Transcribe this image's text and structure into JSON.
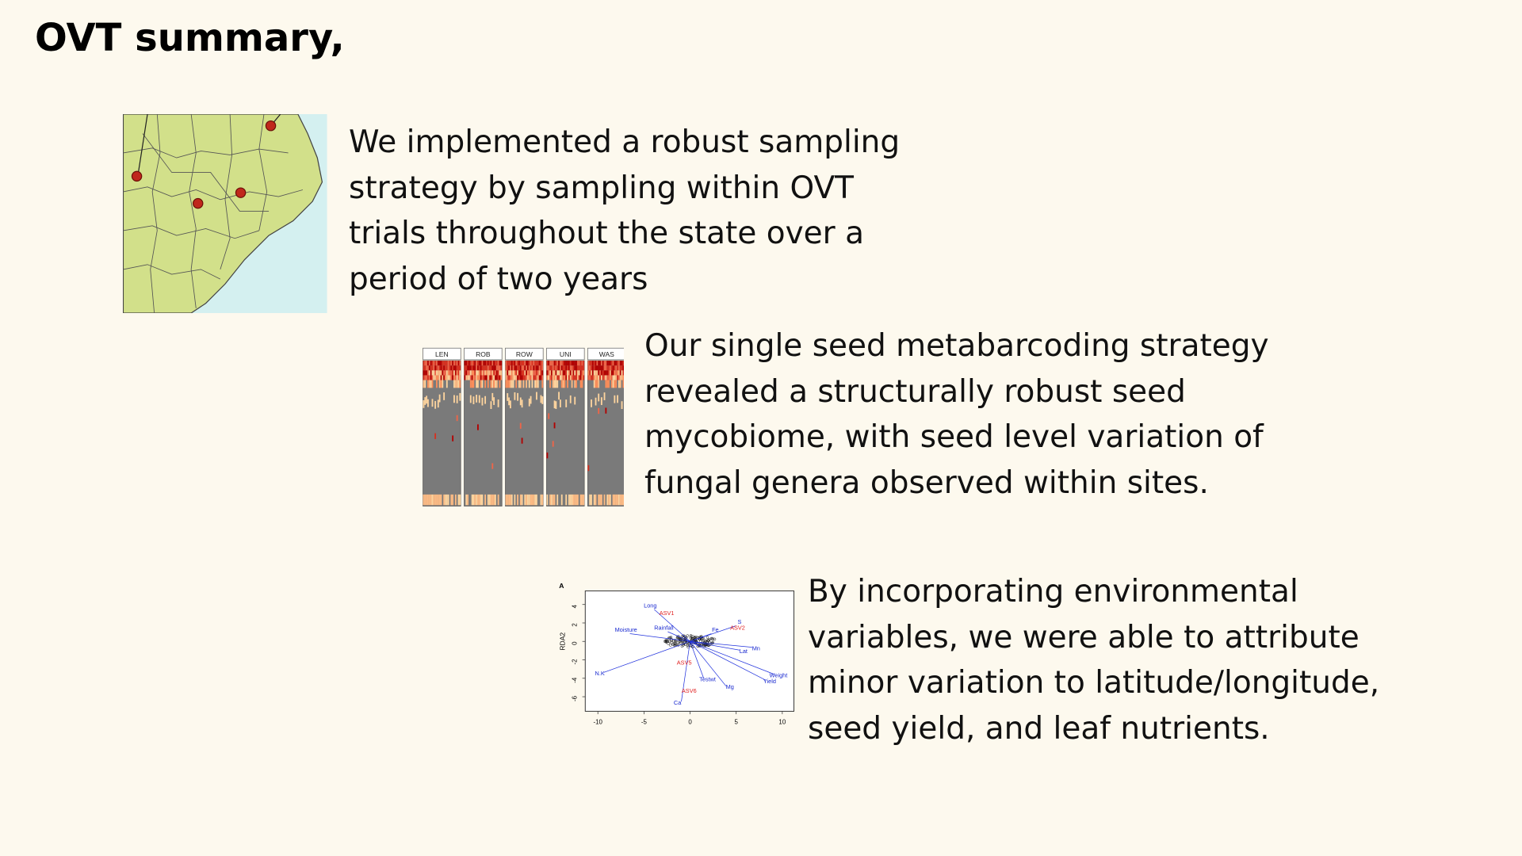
{
  "title": "OVT summary,",
  "sections": [
    {
      "lines": [
        "We implemented a robust sampling",
        "strategy by sampling within OVT",
        "trials throughout the state over a",
        "period of two years"
      ]
    },
    {
      "lines": [
        "Our single seed metabarcoding strategy",
        "revealed a structurally robust seed",
        "mycobiome, with seed level variation of",
        "fungal genera observed within sites."
      ]
    },
    {
      "lines": [
        "By incorporating environmental",
        "variables, we were able to attribute",
        "minor variation to latitude/longitude,",
        "seed yield, and leaf nutrients."
      ]
    }
  ],
  "heatmap": {
    "panels": [
      "LEN",
      "ROB",
      "ROW",
      "UNI",
      "WAS"
    ]
  },
  "rda": {
    "panel_label": "A",
    "y_label": "RDA2",
    "yticks": [
      "4",
      "2",
      "0",
      "-2",
      "-4",
      "-6"
    ],
    "xticks": [
      "-10",
      "-5",
      "0",
      "5",
      "10"
    ],
    "variables": [
      "Long",
      "Rainfall",
      "Moisture",
      "Fe",
      "S",
      "Mn",
      "Lat",
      "N.K",
      "Testwt",
      "Weight",
      "Yield",
      "Mg",
      "Ca"
    ],
    "asvs": [
      "ASV1",
      "ASV2",
      "ASV5",
      "ASV6"
    ]
  }
}
